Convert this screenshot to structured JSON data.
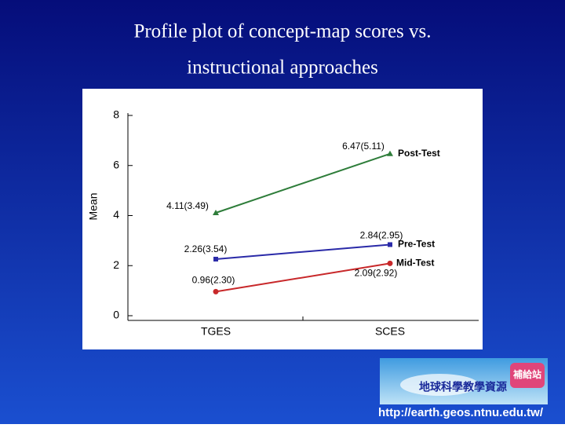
{
  "chart_data": {
    "type": "line",
    "title": [
      "Profile plot of concept-map scores vs.",
      "instructional approaches"
    ],
    "categories": [
      "TGES",
      "SCES"
    ],
    "ylabel": "Mean",
    "ylim": [
      0,
      8
    ],
    "yticks": [
      0,
      2,
      4,
      6,
      8
    ],
    "series": [
      {
        "name": "Post-Test",
        "color": "#2e7d3a",
        "marker": "triangle",
        "values": [
          4.11,
          6.47
        ],
        "value_labels": [
          "4.11(3.49)",
          "6.47(5.11)"
        ]
      },
      {
        "name": "Pre-Test",
        "color": "#2a2aa8",
        "marker": "square",
        "values": [
          2.26,
          2.84
        ],
        "value_labels": [
          "2.26(3.54)",
          "2.84(2.95)"
        ]
      },
      {
        "name": "Mid-Test",
        "color": "#c8282a",
        "marker": "circle",
        "values": [
          0.96,
          2.09
        ],
        "value_labels": [
          "0.96(2.30)",
          "2.09(2.92)"
        ]
      }
    ]
  },
  "logo": {
    "title": "地球科學教學資源",
    "badge": "補給站",
    "url": "http://earth.geos.ntnu.edu.tw/"
  }
}
